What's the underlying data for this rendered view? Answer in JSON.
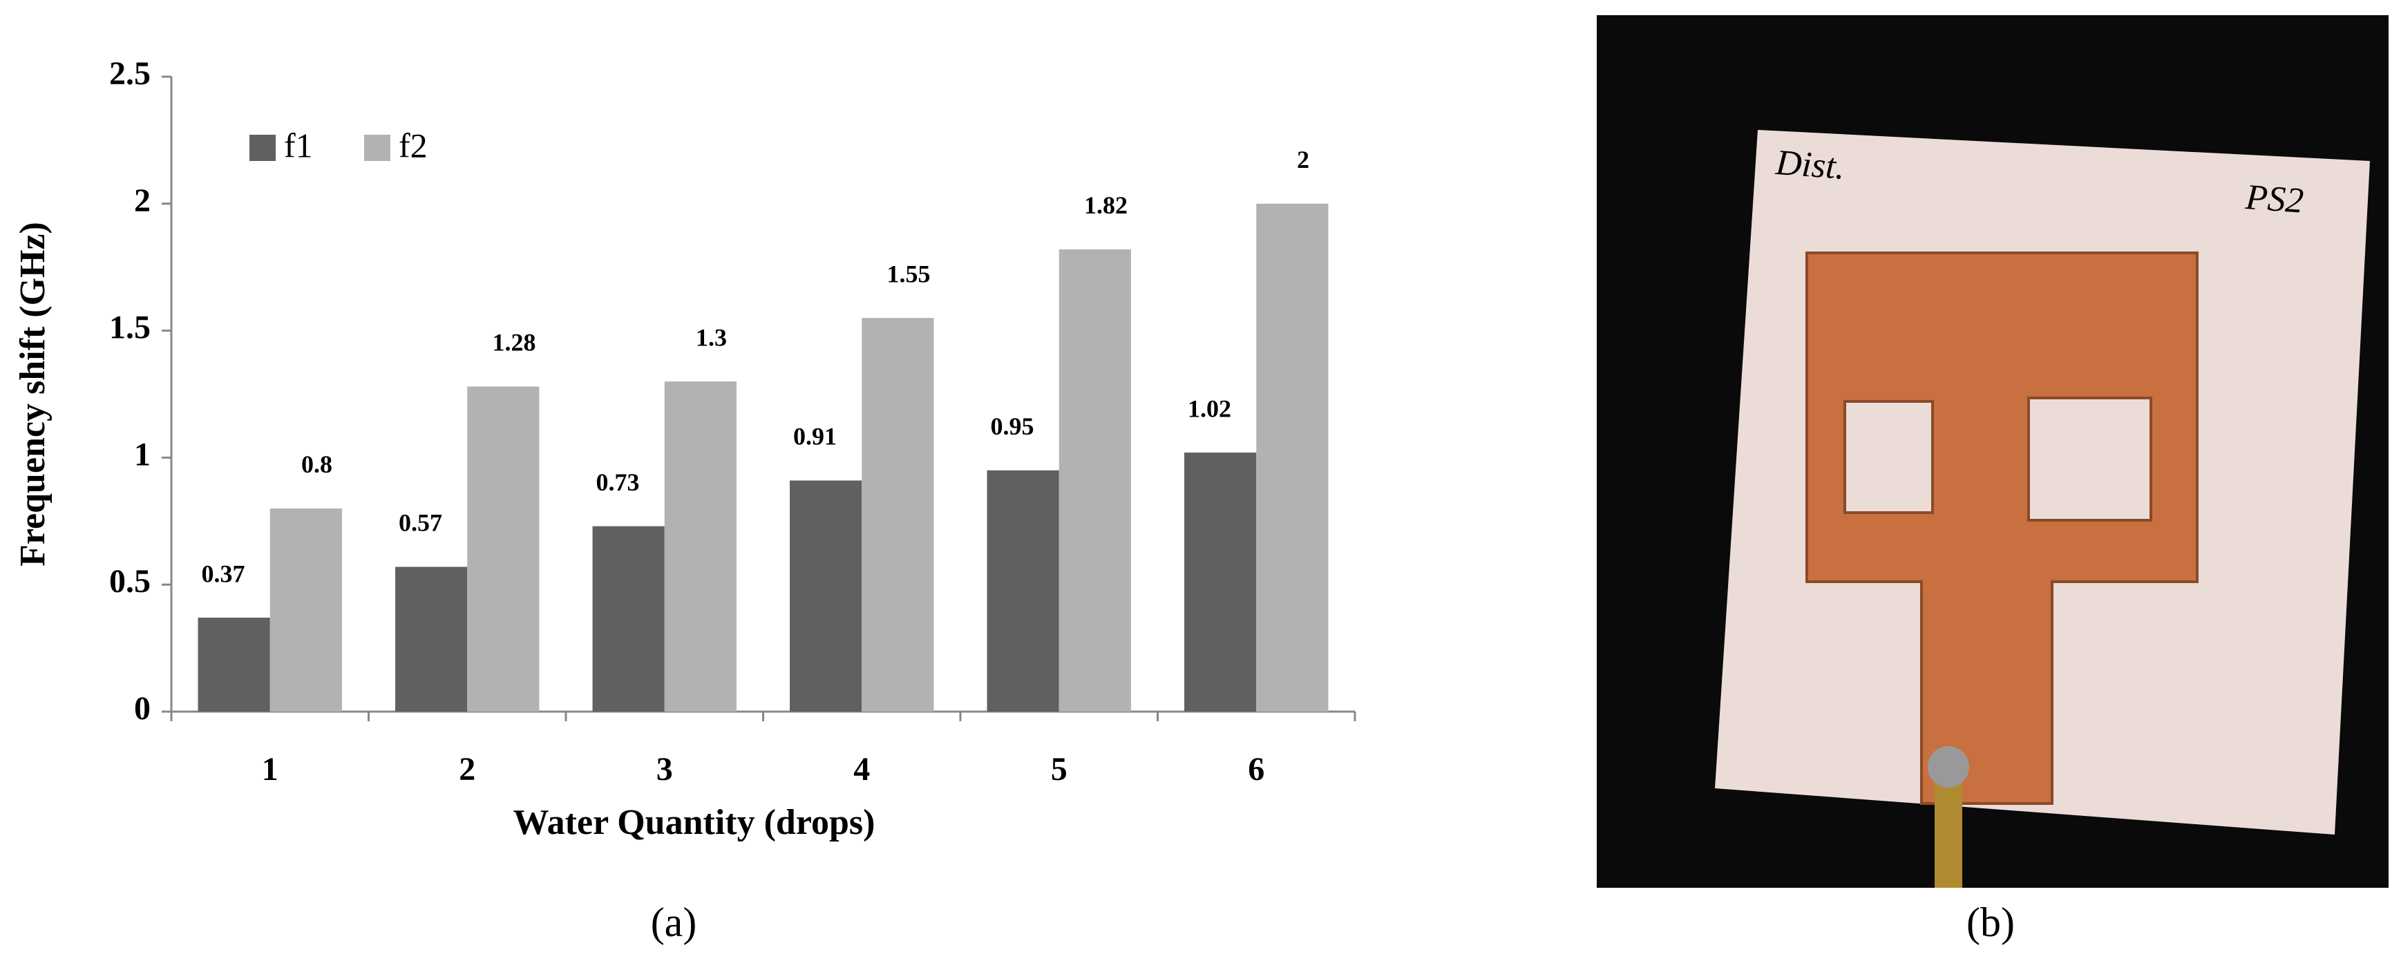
{
  "chart_data": {
    "type": "bar",
    "x_label": "Water Quantity (drops)",
    "y_label": "Frequency shift (GHz)",
    "categories": [
      "1",
      "2",
      "3",
      "4",
      "5",
      "6"
    ],
    "series": [
      {
        "name": "f1",
        "color": "#606060",
        "values": [
          0.37,
          0.57,
          0.73,
          0.91,
          0.95,
          1.02
        ]
      },
      {
        "name": "f2",
        "color": "#b2b2b2",
        "values": [
          0.8,
          1.28,
          1.3,
          1.55,
          1.82,
          2
        ]
      }
    ],
    "ylim": [
      0,
      2.5
    ],
    "yticks": [
      0,
      0.5,
      1,
      1.5,
      2,
      2.5
    ],
    "grid": false,
    "legend": "top-left"
  },
  "captions": [
    "(a)",
    "(b)"
  ],
  "photo": {
    "labels": [
      "Dist.",
      "PS2"
    ]
  }
}
